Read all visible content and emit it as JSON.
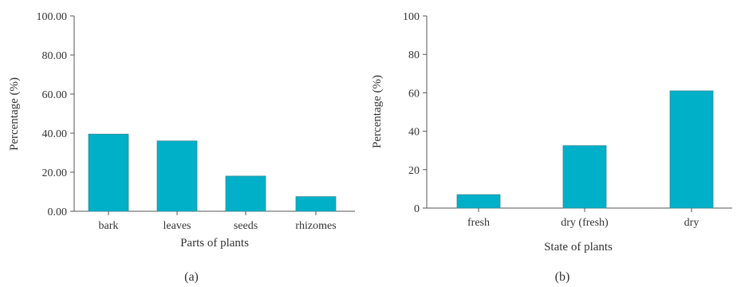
{
  "chart_data": [
    {
      "type": "bar",
      "panel_label": "(a)",
      "categories": [
        "bark",
        "leaves",
        "seeds",
        "rhizomes"
      ],
      "values": [
        39.5,
        36.0,
        18.0,
        7.5
      ],
      "xlabel": "Parts of plants",
      "ylabel": "Percentage (%)",
      "ylim": [
        0,
        100
      ],
      "yticks": [
        "0.00",
        "20.00",
        "40.00",
        "60.00",
        "80.00",
        "100.00"
      ],
      "bar_color": "#00b0c8",
      "grid": false
    },
    {
      "type": "bar",
      "panel_label": "(b)",
      "categories": [
        "fresh",
        "dry (fresh)",
        "dry"
      ],
      "values": [
        7,
        32.5,
        61
      ],
      "xlabel": "State of plants",
      "ylabel": "Percentage (%)",
      "ylim": [
        0,
        100
      ],
      "yticks": [
        "0",
        "20",
        "40",
        "60",
        "80",
        "100"
      ],
      "bar_color": "#00b0c8",
      "grid": false
    }
  ]
}
